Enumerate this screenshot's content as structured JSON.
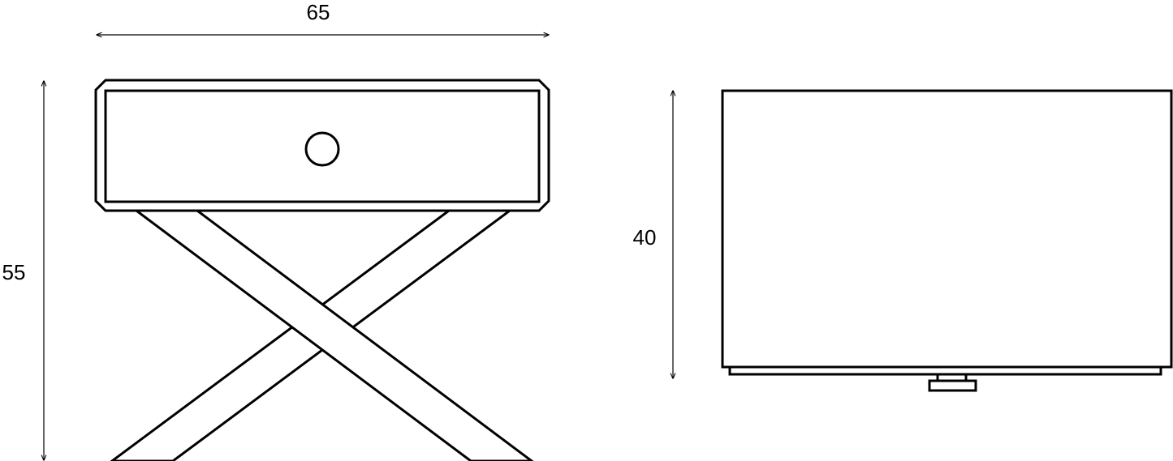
{
  "front_view": {
    "width_label": "65",
    "height_label": "55"
  },
  "side_view": {
    "height_label": "40"
  },
  "colors": {
    "line": "#000000",
    "background": "#ffffff"
  }
}
